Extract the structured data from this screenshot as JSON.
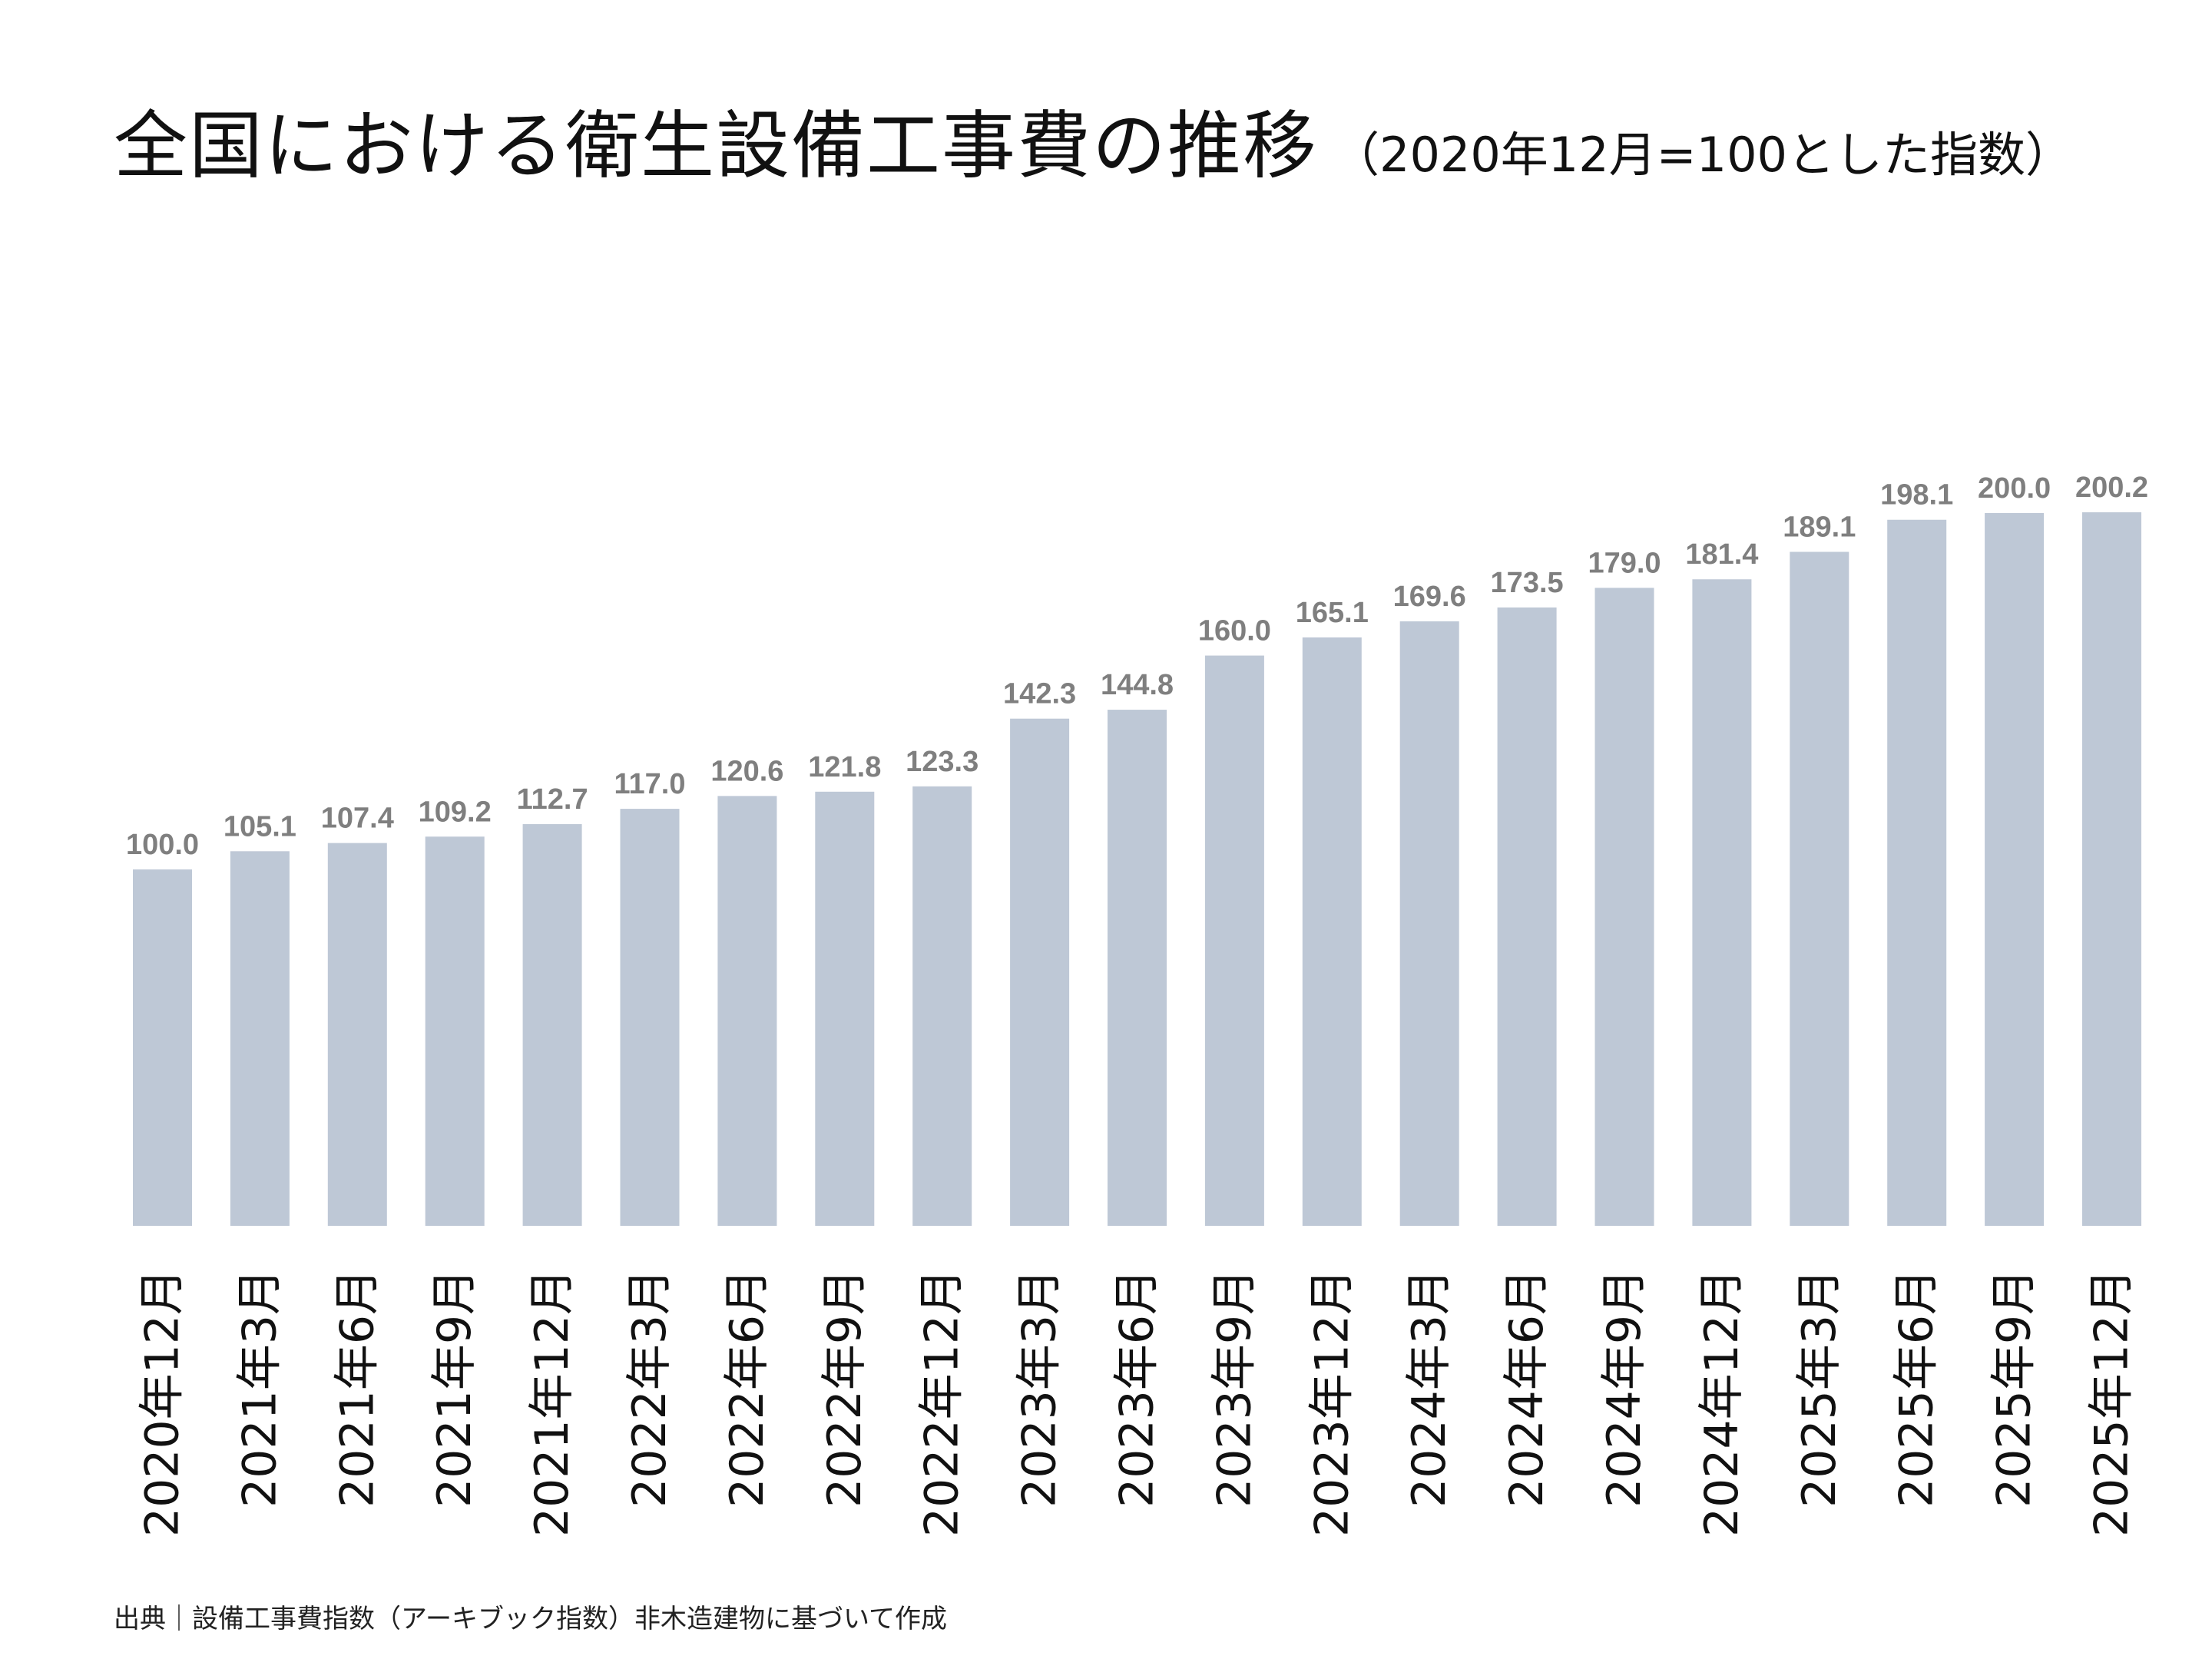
{
  "chart_data": {
    "type": "bar",
    "title": "全国における衛生設備工事費の推移",
    "subtitle": "（2020年12月=100とした指数）",
    "xlabel": "",
    "ylabel": "",
    "ylim": [
      0,
      200.2
    ],
    "grid": false,
    "bar_color": "#bec8d6",
    "label_color": "#7f7f7f",
    "categories": [
      "2020年12月",
      "2021年3月",
      "2021年6月",
      "2021年9月",
      "2021年12月",
      "2022年3月",
      "2022年6月",
      "2022年9月",
      "2022年12月",
      "2023年3月",
      "2023年6月",
      "2023年9月",
      "2023年12月",
      "2024年3月",
      "2024年6月",
      "2024年9月",
      "2024年12月",
      "2025年3月",
      "2025年6月",
      "2025年9月",
      "2025年12月"
    ],
    "values": [
      100.0,
      105.1,
      107.4,
      109.2,
      112.7,
      117.0,
      120.6,
      121.8,
      123.3,
      142.3,
      144.8,
      160.0,
      165.1,
      169.6,
      173.5,
      179.0,
      181.4,
      189.1,
      198.1,
      200.0,
      200.2
    ],
    "source": "出典｜設備工事費指数（アーキブック指数）非木造建物に基づいて作成"
  }
}
